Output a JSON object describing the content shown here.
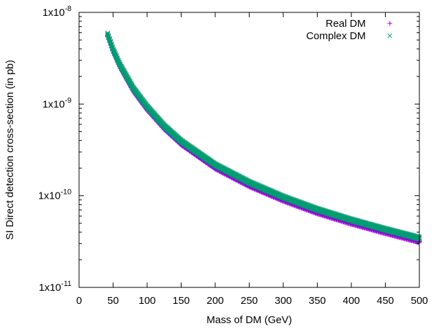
{
  "chart_data": {
    "type": "scatter",
    "title": "",
    "xlabel": "Mass of DM (GeV)",
    "ylabel": "SI Direct detection cross-section (in pb)",
    "xlim": [
      0,
      500
    ],
    "ylim": [
      1e-11,
      1e-08
    ],
    "yscale": "log",
    "x_ticks": [
      0,
      50,
      100,
      150,
      200,
      250,
      300,
      350,
      400,
      450,
      500
    ],
    "x_tick_labels": [
      "0",
      "50",
      "100",
      "150",
      "200",
      "250",
      "300",
      "350",
      "400",
      "450",
      "500"
    ],
    "y_ticks": [
      1e-11,
      1e-10,
      1e-09,
      1e-08
    ],
    "y_tick_labels": [
      {
        "base": "1x10",
        "exp": "-11"
      },
      {
        "base": "1x10",
        "exp": "-10"
      },
      {
        "base": "1x10",
        "exp": "-9"
      },
      {
        "base": "1x10",
        "exp": "-8"
      }
    ],
    "legend_position": "top-right",
    "x_range": [
      42,
      500
    ],
    "series": [
      {
        "name": "Real DM",
        "marker": "plus",
        "color": "#9400d3",
        "anchors": [
          [
            42,
            5.6e-09
          ],
          [
            50,
            3.75e-09
          ],
          [
            60,
            2.55e-09
          ],
          [
            80,
            1.38e-09
          ],
          [
            100,
            8.7e-10
          ],
          [
            125,
            5.4e-10
          ],
          [
            150,
            3.65e-10
          ],
          [
            200,
            2e-10
          ],
          [
            250,
            1.28e-10
          ],
          [
            300,
            8.9e-11
          ],
          [
            350,
            6.5e-11
          ],
          [
            400,
            5e-11
          ],
          [
            450,
            3.95e-11
          ],
          [
            500,
            3.15e-11
          ]
        ]
      },
      {
        "name": "Complex DM",
        "marker": "cross",
        "color": "#009e73",
        "anchors": [
          [
            42,
            5.8e-09
          ],
          [
            50,
            3.95e-09
          ],
          [
            60,
            2.7e-09
          ],
          [
            80,
            1.48e-09
          ],
          [
            100,
            9.4e-10
          ],
          [
            125,
            5.8e-10
          ],
          [
            150,
            3.95e-10
          ],
          [
            200,
            2.18e-10
          ],
          [
            250,
            1.4e-10
          ],
          [
            300,
            9.7e-11
          ],
          [
            350,
            7.1e-11
          ],
          [
            400,
            5.45e-11
          ],
          [
            450,
            4.3e-11
          ],
          [
            500,
            3.45e-11
          ]
        ]
      }
    ]
  }
}
